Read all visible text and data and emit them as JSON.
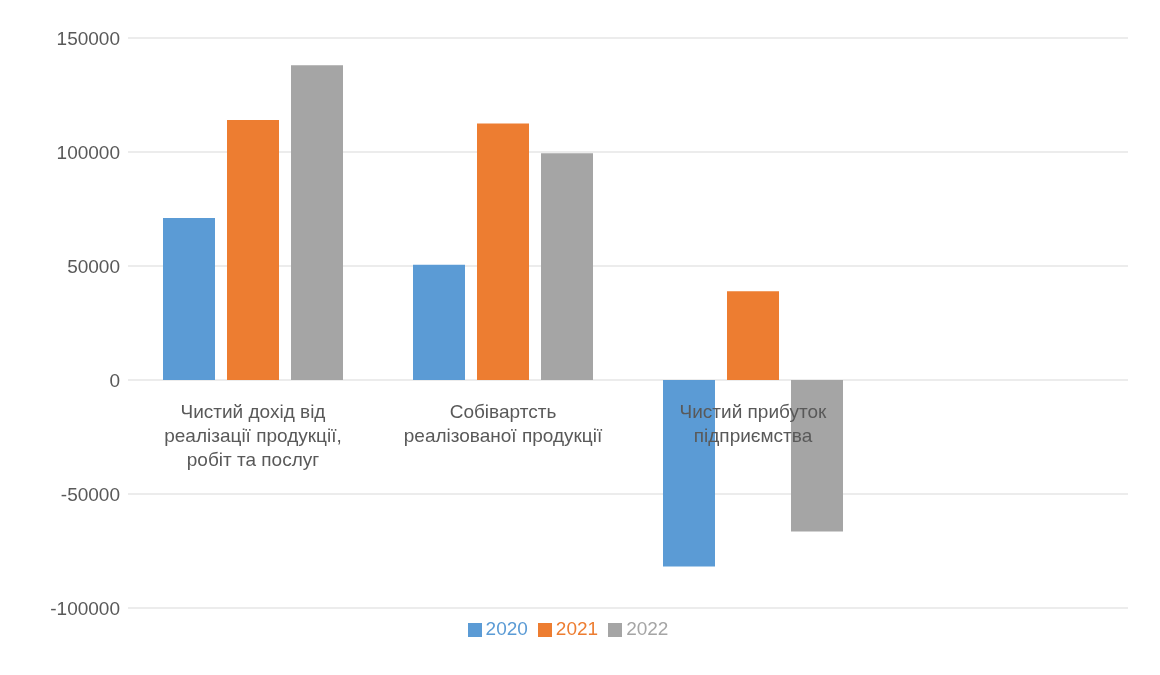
{
  "chart_data": {
    "type": "bar",
    "categories": [
      "Чистий дохід від реалізації продукції, робіт та послуг",
      "Собівартсть реалізованої продукції",
      "Чистий прибуток підприємства",
      null
    ],
    "series": [
      {
        "name": "2020",
        "color": "#5b9bd5",
        "values": [
          71000,
          50600,
          -81800,
          null
        ]
      },
      {
        "name": "2021",
        "color": "#ed7d31",
        "values": [
          114000,
          112500,
          38900,
          null
        ]
      },
      {
        "name": "2022",
        "color": "#a5a5a5",
        "values": [
          138000,
          99400,
          -66400,
          null
        ]
      }
    ],
    "ylim": [
      -100000,
      150000
    ],
    "yticks": [
      -100000,
      -50000,
      0,
      50000,
      100000,
      150000
    ],
    "grid": "y",
    "legend": "bottom"
  }
}
